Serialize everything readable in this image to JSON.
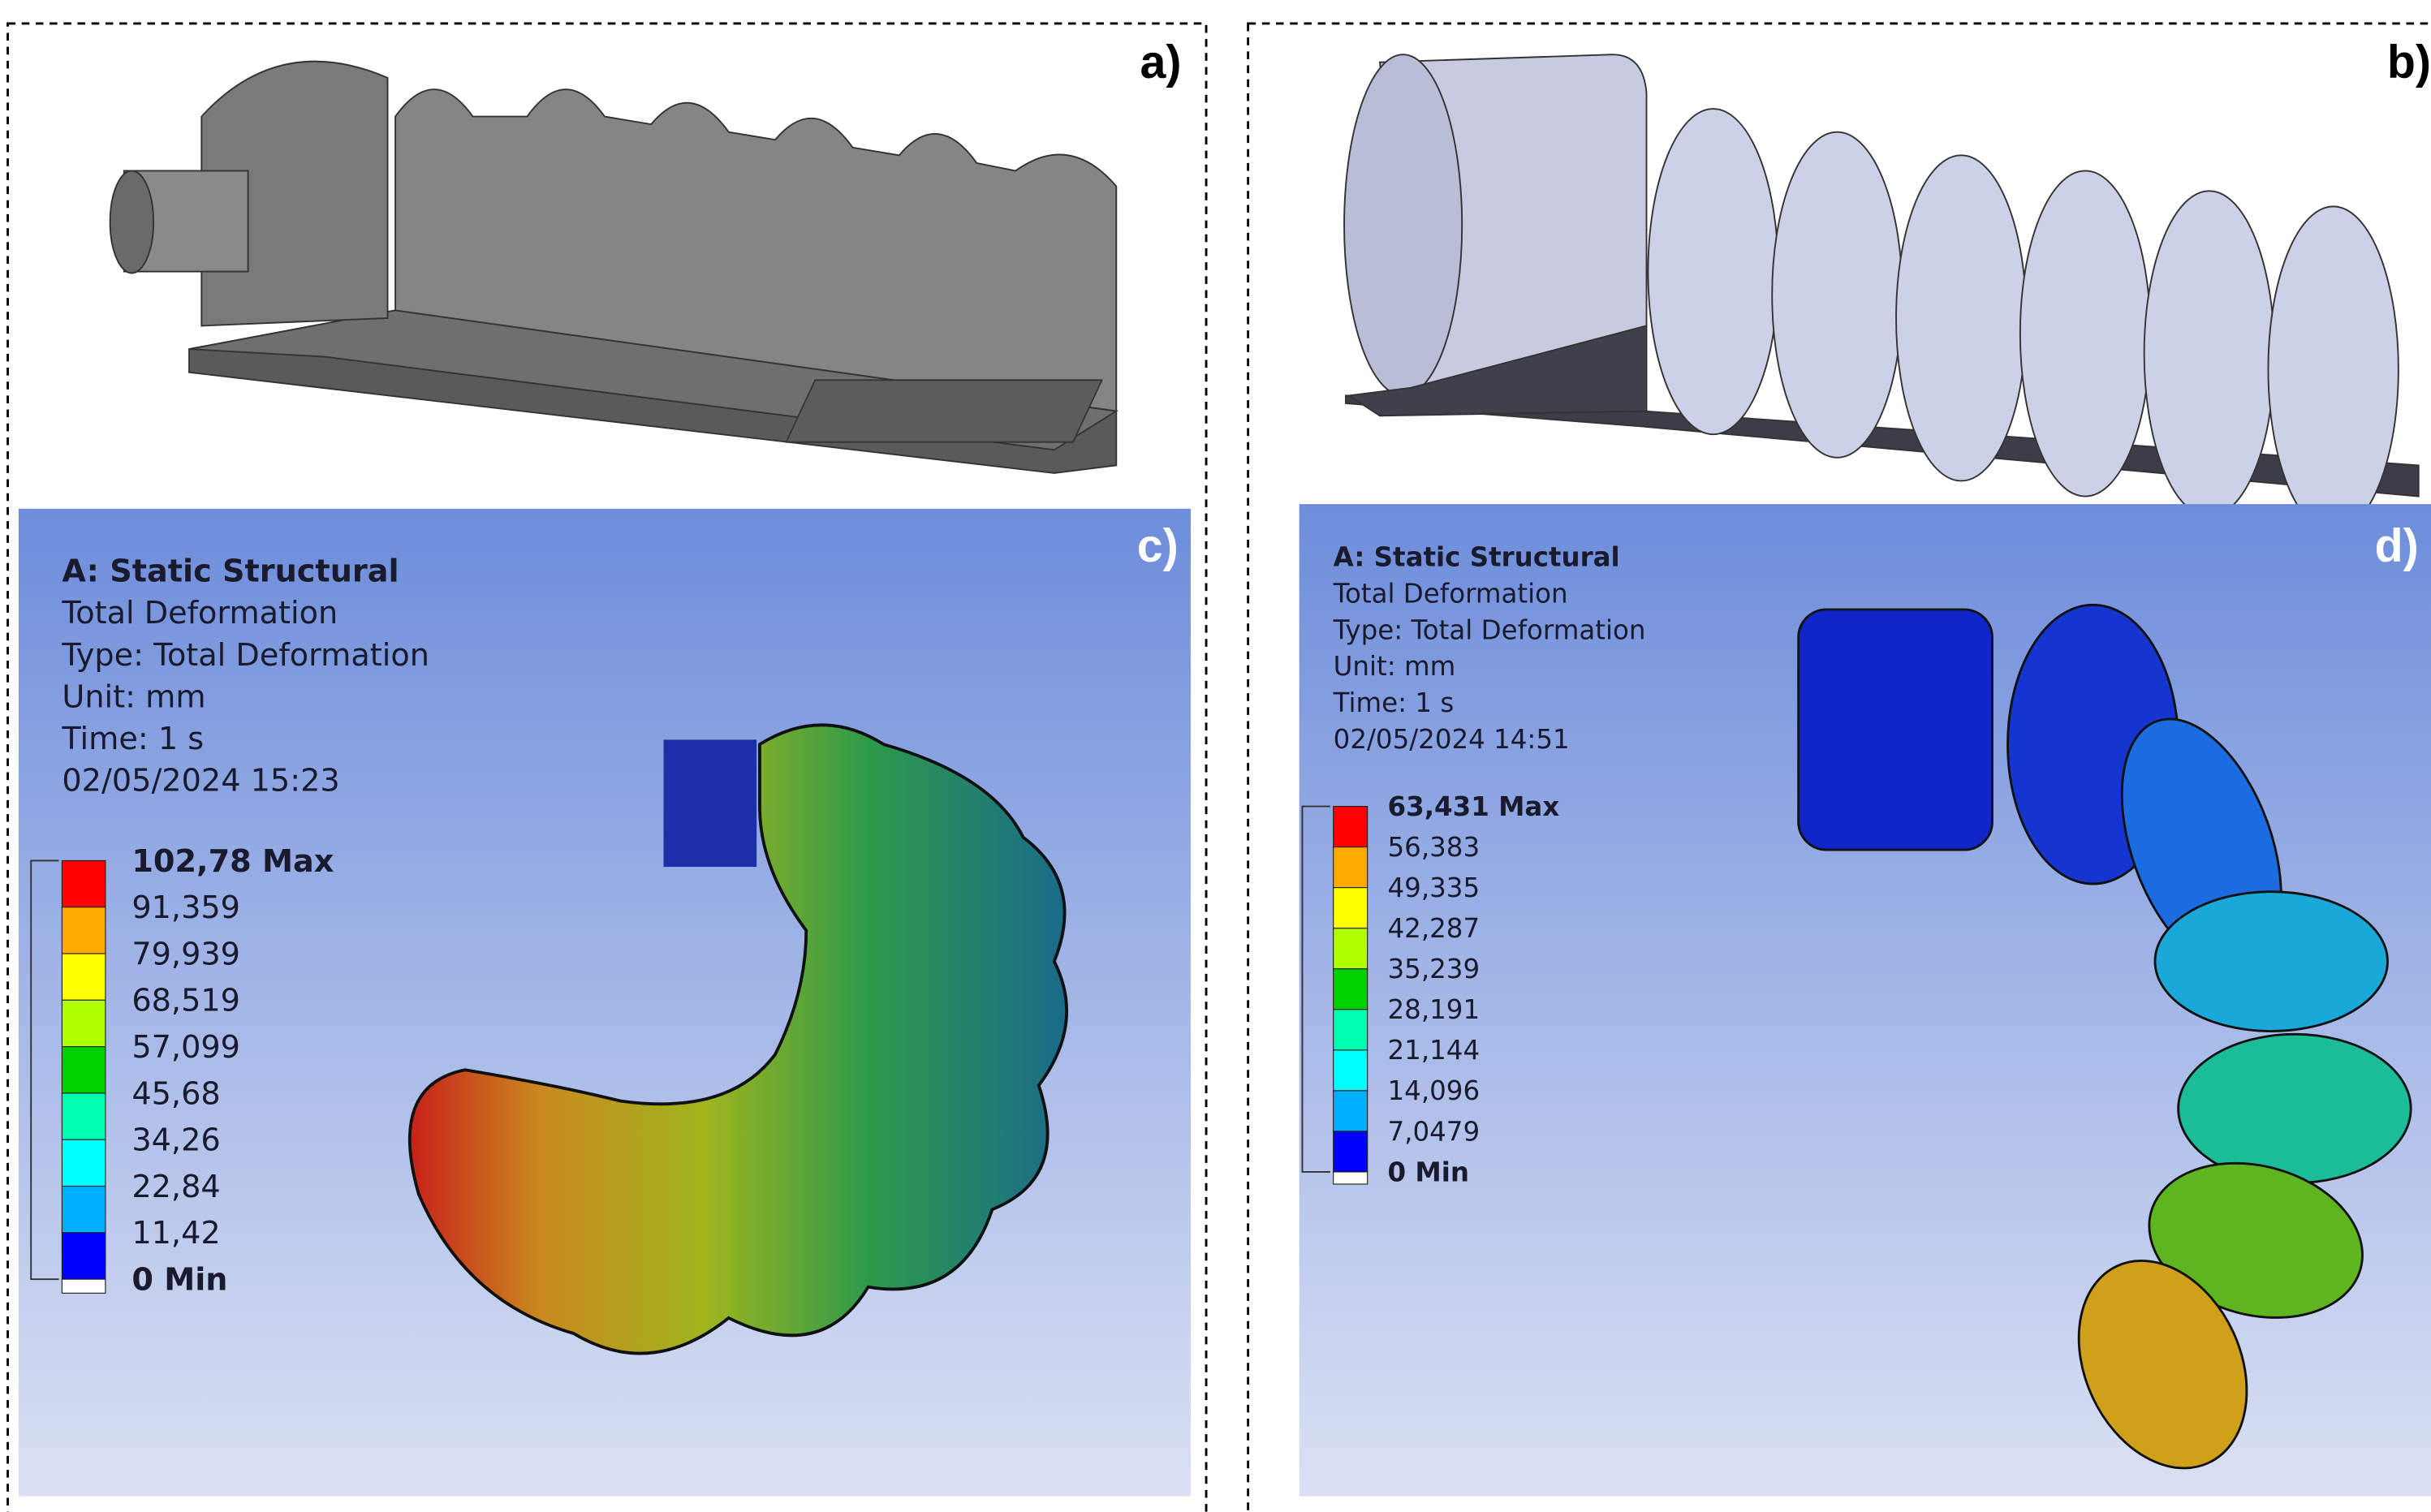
{
  "panels": [
    {
      "label": "a)"
    },
    {
      "label": "b)"
    },
    {
      "label": "c)",
      "info": [
        "A: Static Structural",
        "Total Deformation",
        "Type: Total Deformation",
        "Unit: mm",
        "Time: 1 s",
        "02/05/2024 15:23"
      ],
      "legend": [
        "102,78 Max",
        "91,359",
        "79,939",
        "68,519",
        "57,099",
        "45,68",
        "34,26",
        "22,84",
        "11,42",
        "0 Min"
      ]
    },
    {
      "label": "d)",
      "info": [
        "A: Static Structural",
        "Total Deformation",
        "Type: Total Deformation",
        "Unit: mm",
        "Time: 1 s",
        "02/05/2024 14:51"
      ],
      "legend": [
        "63,431 Max",
        "56,383",
        "49,335",
        "42,287",
        "35,239",
        "28,191",
        "21,144",
        "14,096",
        "7,0479",
        "0 Min"
      ]
    }
  ]
}
